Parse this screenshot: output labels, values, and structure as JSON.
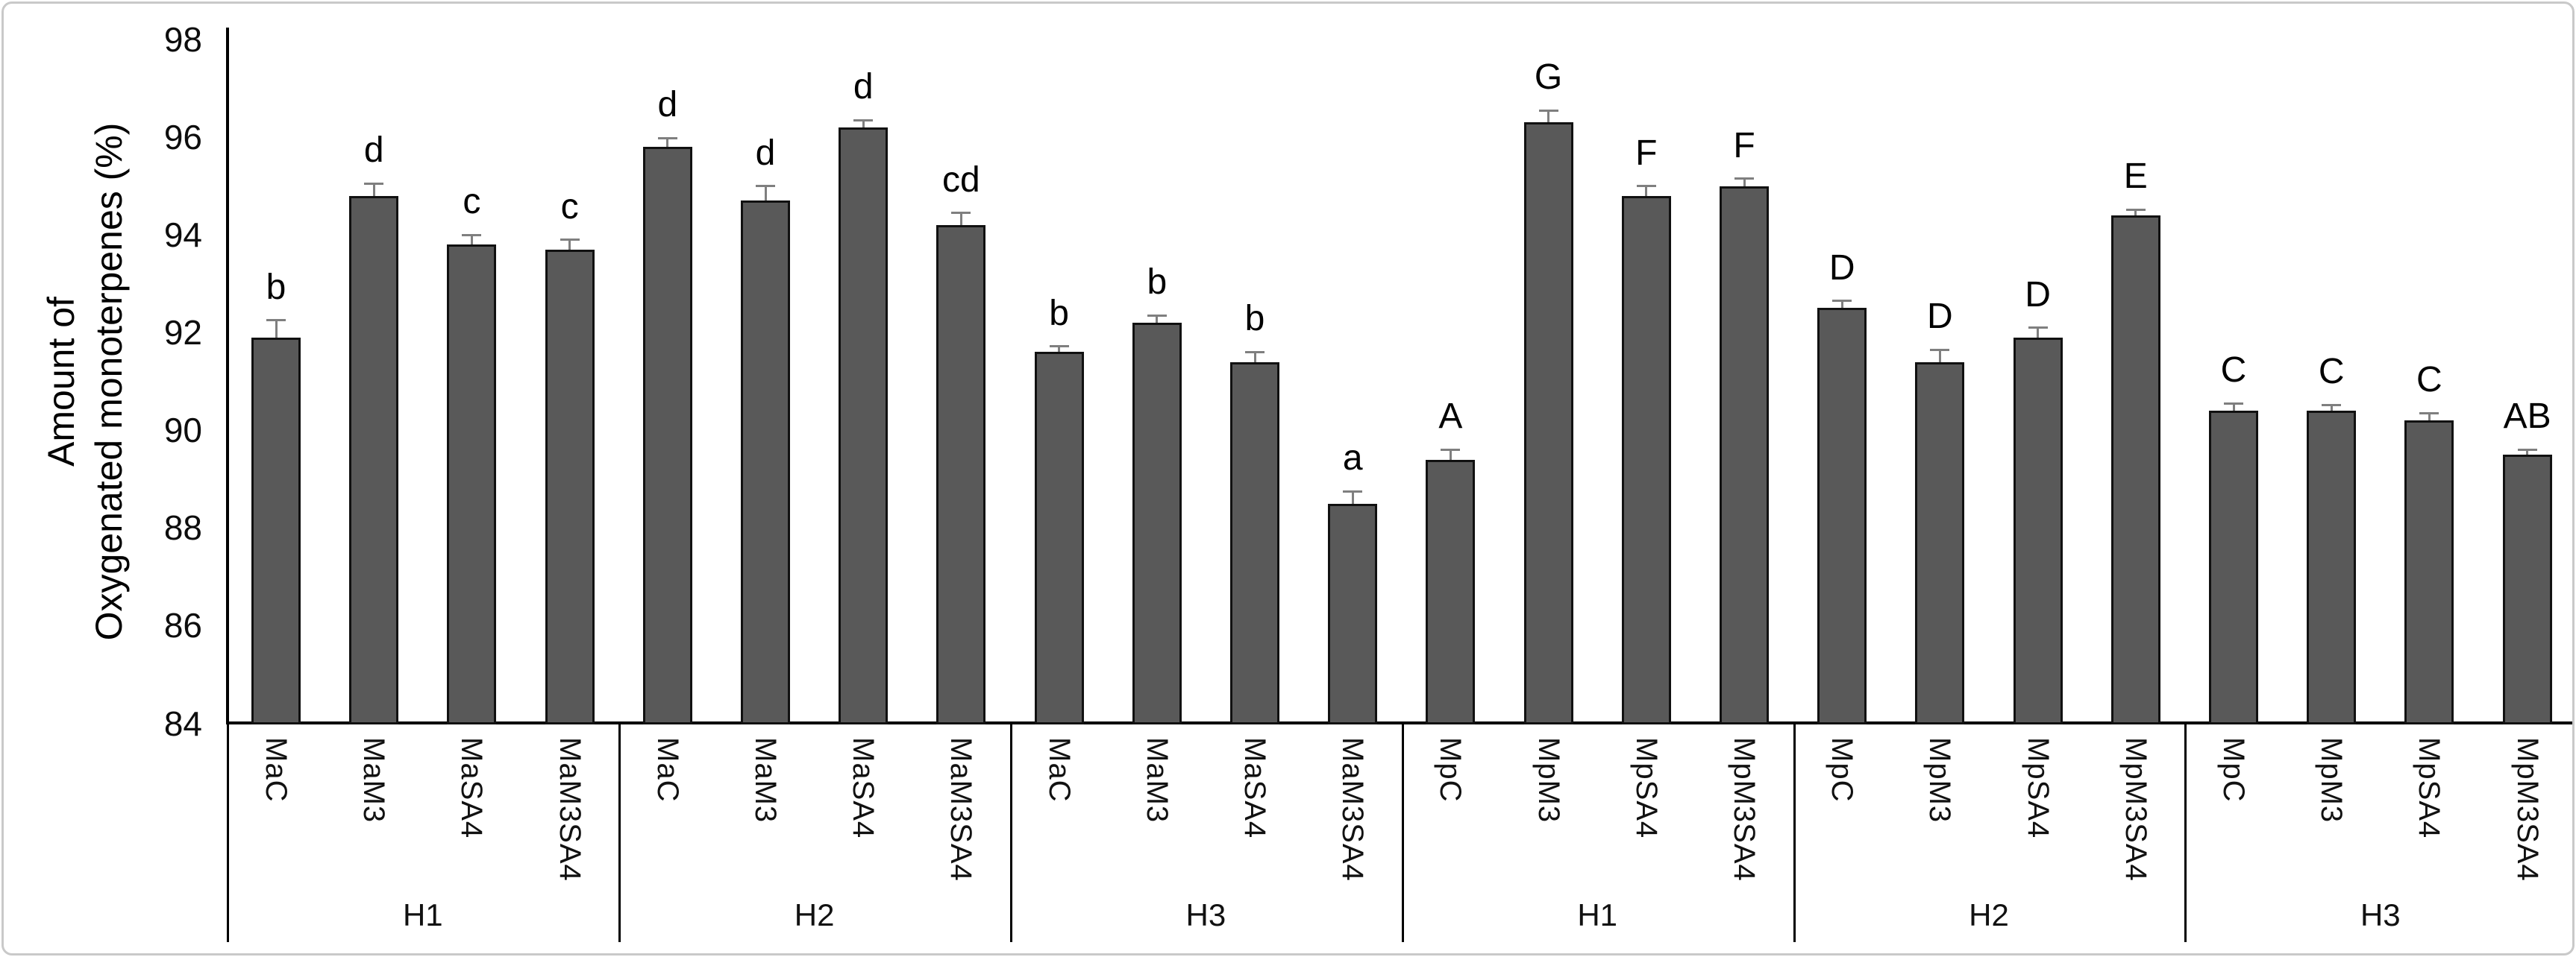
{
  "chart_data": {
    "type": "bar",
    "title": "",
    "ylabel_line1": "Amount of",
    "ylabel_line2": "Oxygenated monoterpenes (%)",
    "ylim": [
      84,
      98
    ],
    "yticks": [
      84,
      86,
      88,
      90,
      92,
      94,
      96,
      98
    ],
    "grid": false,
    "legend": "none",
    "bar_color": "#595959",
    "bar_edge_color": "#111111",
    "error_bar_color": "#7f7f7f",
    "groups": [
      {
        "group": "H1",
        "bars": [
          {
            "label": "MaC",
            "value": 91.9,
            "error": 0.35,
            "letter": "b"
          },
          {
            "label": "MaM3",
            "value": 94.8,
            "error": 0.25,
            "letter": "d"
          },
          {
            "label": "MaSA4",
            "value": 93.8,
            "error": 0.2,
            "letter": "c"
          },
          {
            "label": "MaM3SA4",
            "value": 93.7,
            "error": 0.2,
            "letter": "c"
          }
        ]
      },
      {
        "group": "H2",
        "bars": [
          {
            "label": "MaC",
            "value": 95.8,
            "error": 0.18,
            "letter": "d"
          },
          {
            "label": "MaM3",
            "value": 94.7,
            "error": 0.3,
            "letter": "d"
          },
          {
            "label": "MaSA4",
            "value": 96.2,
            "error": 0.15,
            "letter": "d"
          },
          {
            "label": "MaM3SA4",
            "value": 94.2,
            "error": 0.25,
            "letter": "cd"
          }
        ]
      },
      {
        "group": "H3",
        "bars": [
          {
            "label": "MaC",
            "value": 91.6,
            "error": 0.12,
            "letter": "b"
          },
          {
            "label": "MaM3",
            "value": 92.2,
            "error": 0.15,
            "letter": "b"
          },
          {
            "label": "MaSA4",
            "value": 91.4,
            "error": 0.2,
            "letter": "b"
          },
          {
            "label": "MaM3SA4",
            "value": 88.5,
            "error": 0.25,
            "letter": "a"
          }
        ]
      },
      {
        "group": "H1",
        "bars": [
          {
            "label": "MpC",
            "value": 89.4,
            "error": 0.2,
            "letter": "A"
          },
          {
            "label": "MpM3",
            "value": 96.3,
            "error": 0.25,
            "letter": "G"
          },
          {
            "label": "MpSA4",
            "value": 94.8,
            "error": 0.2,
            "letter": "F"
          },
          {
            "label": "MpM3SA4",
            "value": 95.0,
            "error": 0.15,
            "letter": "F"
          }
        ]
      },
      {
        "group": "H2",
        "bars": [
          {
            "label": "MpC",
            "value": 92.5,
            "error": 0.15,
            "letter": "D"
          },
          {
            "label": "MpM3",
            "value": 91.4,
            "error": 0.25,
            "letter": "D"
          },
          {
            "label": "MpSA4",
            "value": 91.9,
            "error": 0.2,
            "letter": "D"
          },
          {
            "label": "MpM3SA4",
            "value": 94.4,
            "error": 0.12,
            "letter": "E"
          }
        ]
      },
      {
        "group": "H3",
        "bars": [
          {
            "label": "MpC",
            "value": 90.4,
            "error": 0.15,
            "letter": "C"
          },
          {
            "label": "MpM3",
            "value": 90.4,
            "error": 0.12,
            "letter": "C"
          },
          {
            "label": "MpSA4",
            "value": 90.2,
            "error": 0.15,
            "letter": "C"
          },
          {
            "label": "MpM3SA4",
            "value": 89.5,
            "error": 0.1,
            "letter": "AB"
          }
        ]
      }
    ]
  }
}
